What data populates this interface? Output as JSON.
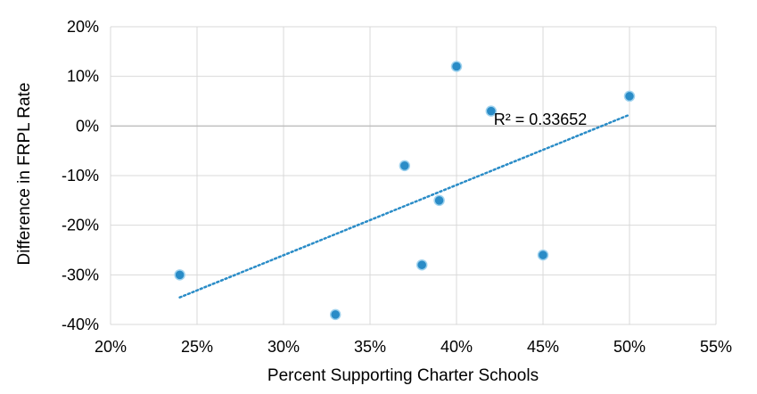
{
  "chart_data": {
    "type": "scatter",
    "title": "",
    "xlabel": "Percent Supporting Charter Schools",
    "ylabel": "Difference in FRPL Rate",
    "xlim": [
      0.2,
      0.55
    ],
    "ylim": [
      -0.4,
      0.2
    ],
    "x_ticks": [
      0.2,
      0.25,
      0.3,
      0.35,
      0.4,
      0.45,
      0.5,
      0.55
    ],
    "y_ticks": [
      -0.4,
      -0.3,
      -0.2,
      -0.1,
      0.0,
      0.1,
      0.2
    ],
    "x_tick_labels": [
      "20%",
      "25%",
      "30%",
      "35%",
      "40%",
      "45%",
      "50%",
      "55%"
    ],
    "y_tick_labels": [
      "-40%",
      "-30%",
      "-20%",
      "-10%",
      "0%",
      "10%",
      "20%"
    ],
    "grid": true,
    "legend": "none",
    "points": [
      {
        "x": 0.24,
        "y": -0.3
      },
      {
        "x": 0.33,
        "y": -0.38
      },
      {
        "x": 0.37,
        "y": -0.08
      },
      {
        "x": 0.38,
        "y": -0.28
      },
      {
        "x": 0.39,
        "y": -0.15
      },
      {
        "x": 0.4,
        "y": 0.12
      },
      {
        "x": 0.42,
        "y": 0.03
      },
      {
        "x": 0.45,
        "y": -0.26
      },
      {
        "x": 0.5,
        "y": 0.06
      }
    ],
    "trendline": {
      "type": "linear",
      "x_range": [
        0.24,
        0.5
      ],
      "r_squared_label": "R² = 0.33652"
    },
    "colors": {
      "marker": "#2a8cc7",
      "marker_edge": "#9fd2ee",
      "trendline": "#2a8cc7",
      "grid": "#d9d9d9",
      "zero_axis": "#bfbfbf"
    }
  }
}
